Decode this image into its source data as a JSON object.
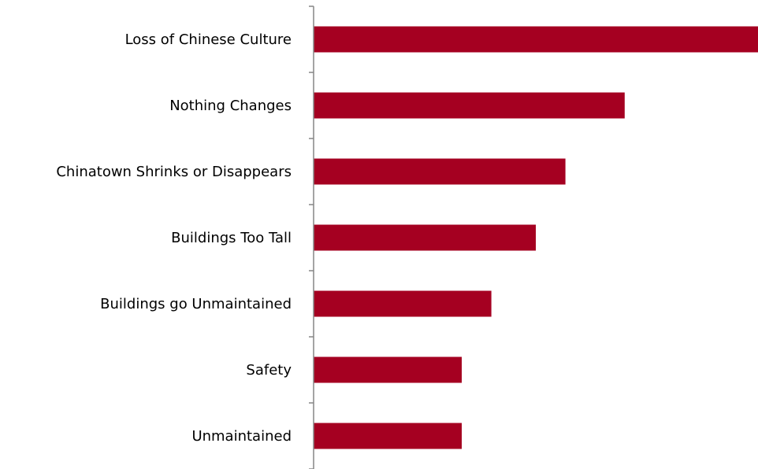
{
  "chart_data": {
    "type": "bar",
    "orientation": "horizontal",
    "title": "",
    "xlabel": "",
    "ylabel": "",
    "categories": [
      "Loss of Chinese Culture",
      "Nothing Changes",
      "Chinatown Shrinks or Disappears",
      "Buildings Too Tall",
      "Buildings go Unmaintained",
      "Safety",
      "Unmaintained"
    ],
    "values": [
      15,
      10.5,
      8.5,
      7.5,
      6,
      5,
      5
    ],
    "xlim": [
      0,
      15
    ],
    "grid": false,
    "legend": "none",
    "colors": {
      "bar": "#a50021",
      "axis": "#868686",
      "text": "#000000"
    }
  }
}
